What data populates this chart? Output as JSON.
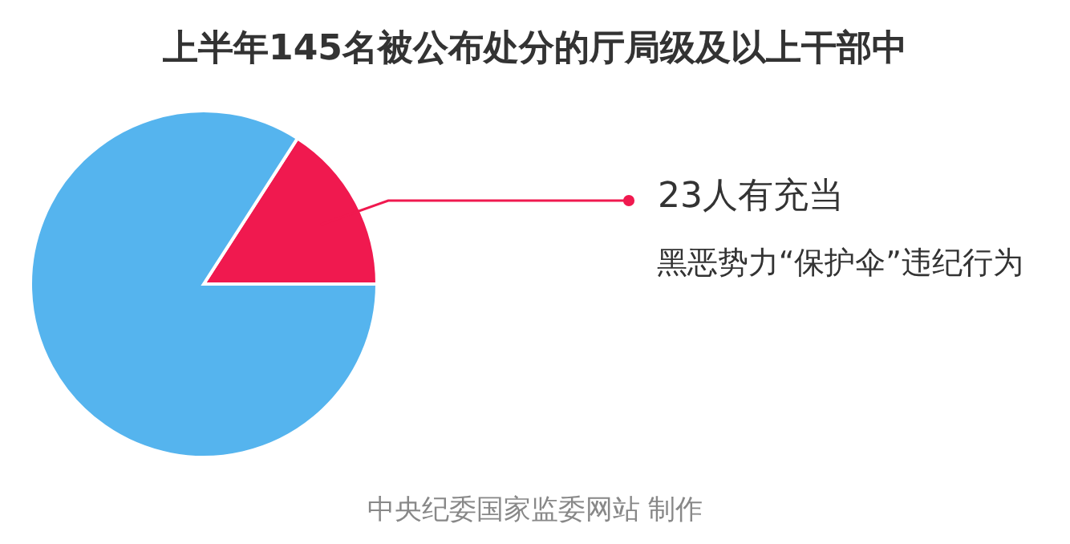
{
  "chart_data": {
    "type": "pie",
    "title": "上半年145名被公布处分的厅局级及以上干部中",
    "categories": [
      null,
      null
    ],
    "values": [
      15.9,
      84.1
    ],
    "colors": [
      "#f0194f",
      "#55b4ee"
    ],
    "annotations": [
      "23人有充当",
      "黑恶势力“保护伞”违纪行为",
      "中央纪委国家监委网站 制作"
    ]
  }
}
